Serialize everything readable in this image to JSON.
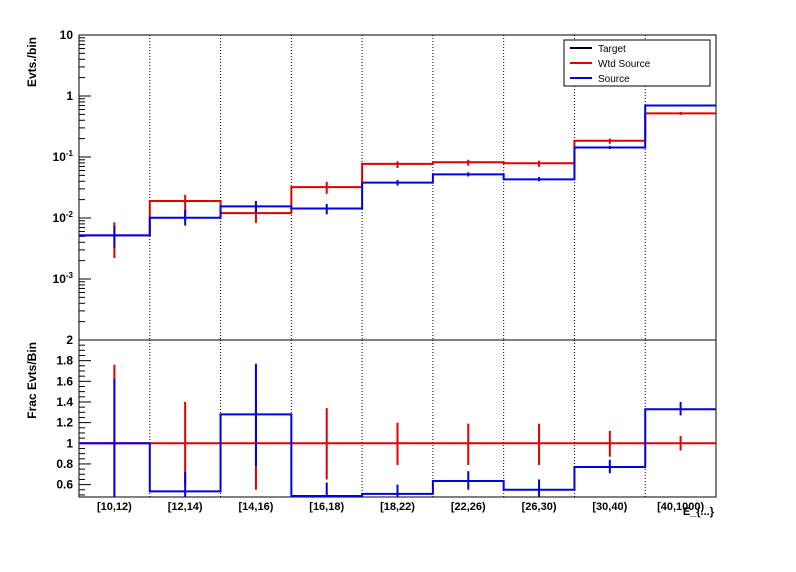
{
  "chart_data": [
    {
      "type": "line",
      "panel": "top",
      "ylabel": "Evts./bin",
      "yscale": "log",
      "ylim": [
        0.0001,
        10
      ],
      "yticks": [
        {
          "value": 10,
          "base": "10",
          "exp": ""
        },
        {
          "value": 1,
          "base": "1",
          "exp": ""
        },
        {
          "value": 0.1,
          "base": "10",
          "exp": "-1"
        },
        {
          "value": 0.01,
          "base": "10",
          "exp": "-2"
        },
        {
          "value": 0.001,
          "base": "10",
          "exp": "-3"
        }
      ],
      "categories": [
        "[10,12)",
        "[12,14)",
        "[14,16)",
        "[16,18)",
        "[18,22)",
        "[22,26)",
        "[26,30)",
        "[30,40)",
        "[40,1000)"
      ],
      "grid_x": true,
      "legend": {
        "position": "top-right",
        "entries": [
          {
            "label": "Target",
            "color": "#000000"
          },
          {
            "label": "Wtd Source",
            "color": "#e00000"
          },
          {
            "label": "Source",
            "color": "#0000e0"
          }
        ]
      },
      "series": [
        {
          "name": "Wtd Source",
          "color": "#e00000",
          "values": [
            0.0052,
            0.019,
            0.012,
            0.032,
            0.077,
            0.082,
            0.079,
            0.185,
            0.52
          ],
          "err_low": [
            0.0022,
            0.0095,
            0.0083,
            0.025,
            0.066,
            0.072,
            0.069,
            0.165,
            0.49
          ],
          "err_high": [
            0.0085,
            0.024,
            0.016,
            0.039,
            0.085,
            0.09,
            0.087,
            0.2,
            0.55
          ]
        },
        {
          "name": "Source",
          "color": "#0000e0",
          "values": [
            0.0052,
            0.0101,
            0.0155,
            0.0143,
            0.038,
            0.052,
            0.043,
            0.143,
            0.7
          ],
          "err_low": [
            0.0032,
            0.0075,
            0.012,
            0.0115,
            0.034,
            0.048,
            0.04,
            0.135,
            0.68
          ],
          "err_high": [
            0.0075,
            0.0135,
            0.019,
            0.017,
            0.042,
            0.056,
            0.047,
            0.152,
            0.72
          ]
        }
      ]
    },
    {
      "type": "line",
      "panel": "bottom",
      "ylabel": "Frac Evts/Bin",
      "ylim": [
        0.48,
        2.0
      ],
      "yticks": [
        "2",
        "1.8",
        "1.6",
        "1.4",
        "1.2",
        "1",
        "0.8",
        "0.6"
      ],
      "ytick_values": [
        2.0,
        1.8,
        1.6,
        1.4,
        1.2,
        1.0,
        0.8,
        0.6
      ],
      "xlabel": "E_{...}",
      "categories": [
        "[10,12)",
        "[12,14)",
        "[14,16)",
        "[16,18)",
        "[18,22)",
        "[22,26)",
        "[26,30)",
        "[30,40)",
        "[40,1000)"
      ],
      "grid_x": true,
      "series": [
        {
          "name": "Wtd Source",
          "color": "#e00000",
          "values": [
            1,
            1,
            1,
            1,
            1,
            1,
            1,
            1,
            1
          ],
          "err_low": [
            0.2,
            0.6,
            0.55,
            0.65,
            0.79,
            0.79,
            0.79,
            0.87,
            0.93
          ],
          "err_high": [
            1.76,
            1.4,
            1.44,
            1.34,
            1.2,
            1.19,
            1.19,
            1.12,
            1.07
          ]
        },
        {
          "name": "Source",
          "color": "#0000e0",
          "values": [
            1.0,
            0.535,
            1.28,
            0.49,
            0.51,
            0.635,
            0.55,
            0.77,
            1.33
          ],
          "err_low": [
            0.3,
            0.36,
            0.78,
            0.34,
            0.43,
            0.55,
            0.48,
            0.71,
            1.27
          ],
          "err_high": [
            1.62,
            0.72,
            1.77,
            0.62,
            0.6,
            0.73,
            0.65,
            0.84,
            1.4
          ]
        }
      ]
    }
  ]
}
